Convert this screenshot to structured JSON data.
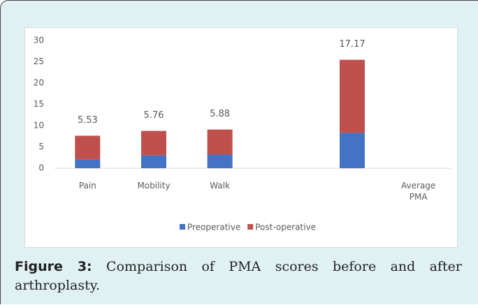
{
  "chart_data": {
    "type": "stacked_bar",
    "categories": [
      "Pain",
      "Mobility",
      "Walk",
      null,
      null,
      "Average PMA"
    ],
    "series": [
      {
        "name": "Preoperative",
        "color": "#4472c4",
        "values": [
          2.1,
          3.0,
          3.2,
          null,
          8.3,
          null
        ]
      },
      {
        "name": "Post-operative",
        "color": "#c0504d",
        "values": [
          5.53,
          5.76,
          5.88,
          null,
          17.17,
          null
        ],
        "data_labels": true
      }
    ],
    "ylim": [
      0,
      30
    ],
    "yticks": [
      0,
      5,
      10,
      15,
      20,
      25,
      30
    ],
    "grid": false,
    "legend": "bottom"
  },
  "caption": {
    "label": "Figure 3:",
    "text": "Comparison of PMA scores before and after arthroplasty."
  }
}
